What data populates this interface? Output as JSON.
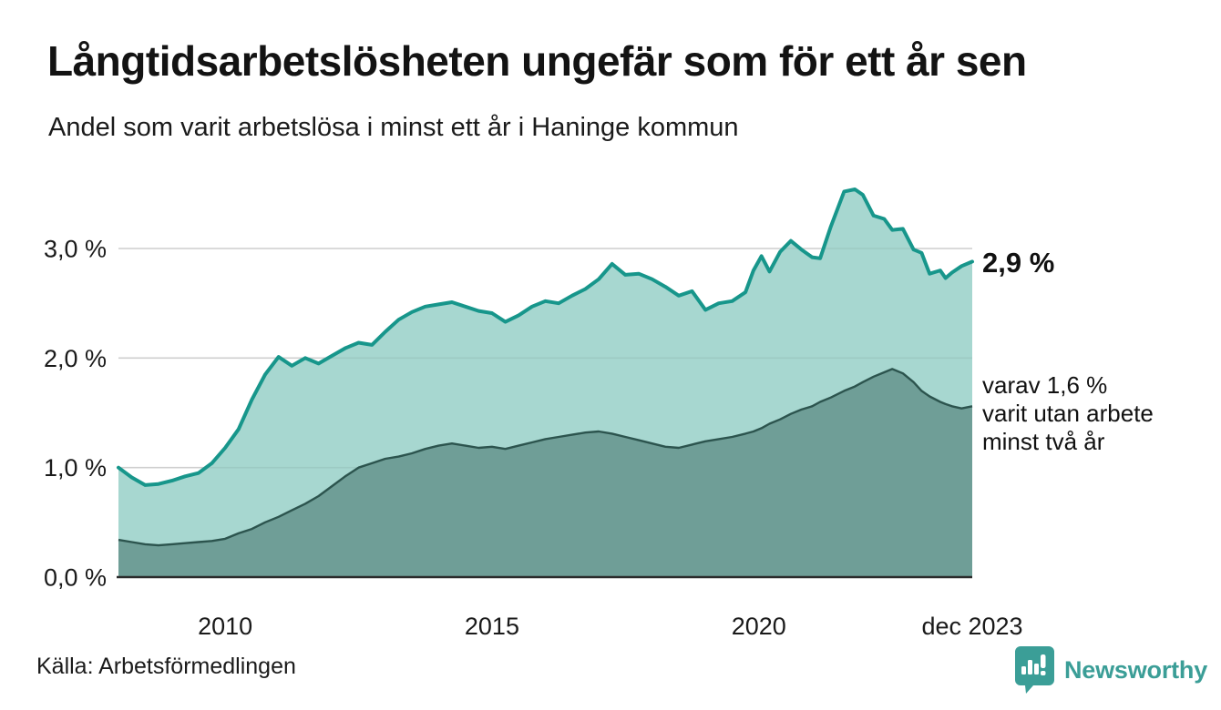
{
  "header": {
    "title": "Långtidsarbetslösheten ungefär som för ett år sen",
    "subtitle": "Andel som varit arbetslösa i minst ett år i Haninge kommun"
  },
  "annotations": {
    "end_value": "2,9 %",
    "sub_lines": [
      "varav 1,6 %",
      "varit utan arbete",
      "minst två år"
    ]
  },
  "footer": {
    "source": "Källa: Arbetsförmedlingen",
    "brand": "Newsworthy"
  },
  "colors": {
    "total_line": "#17968b",
    "total_fill": "#a7d7d0",
    "two_year_line": "#2c544e",
    "two_year_fill": "#6f9e97",
    "gridline": "#dcdcdc",
    "axis_line": "#2b2b2b",
    "text": "#1a1a1a",
    "brand_teal": "#3b9e97"
  },
  "chart_data": {
    "type": "area",
    "title": "Långtidsarbetslösheten ungefär som för ett år sen",
    "subtitle": "Andel som varit arbetslösa i minst ett år i Haninge kommun",
    "unit": "%",
    "grid": "horizontal",
    "legend_position": "right-edge-annotations",
    "ylim": [
      0,
      3.6
    ],
    "xlim": [
      2008,
      2024
    ],
    "x": [
      2008.0,
      2008.25,
      2008.5,
      2008.75,
      2009.0,
      2009.25,
      2009.5,
      2009.75,
      2010.0,
      2010.25,
      2010.5,
      2010.75,
      2011.0,
      2011.25,
      2011.5,
      2011.75,
      2012.0,
      2012.25,
      2012.5,
      2012.75,
      2013.0,
      2013.25,
      2013.5,
      2013.75,
      2014.0,
      2014.25,
      2014.5,
      2014.75,
      2015.0,
      2015.25,
      2015.5,
      2015.75,
      2016.0,
      2016.25,
      2016.5,
      2016.75,
      2017.0,
      2017.25,
      2017.5,
      2017.75,
      2018.0,
      2018.25,
      2018.5,
      2018.75,
      2019.0,
      2019.25,
      2019.5,
      2019.75,
      2019.9,
      2020.05,
      2020.2,
      2020.4,
      2020.6,
      2020.8,
      2021.0,
      2021.15,
      2021.35,
      2021.6,
      2021.8,
      2021.95,
      2022.15,
      2022.35,
      2022.5,
      2022.7,
      2022.9,
      2023.05,
      2023.2,
      2023.4,
      2023.5,
      2023.62,
      2023.8,
      2024.0
    ],
    "series": [
      {
        "name": "Andel som varit arbetslösa i minst ett år",
        "end_label": "2,9 %",
        "end_value_pct": 2.9,
        "values": [
          1.0,
          0.91,
          0.84,
          0.85,
          0.88,
          0.92,
          0.95,
          1.04,
          1.18,
          1.35,
          1.62,
          1.85,
          2.01,
          1.93,
          2.0,
          1.95,
          2.02,
          2.09,
          2.14,
          2.12,
          2.24,
          2.35,
          2.42,
          2.47,
          2.49,
          2.51,
          2.47,
          2.43,
          2.41,
          2.33,
          2.39,
          2.47,
          2.52,
          2.5,
          2.57,
          2.63,
          2.72,
          2.86,
          2.76,
          2.77,
          2.72,
          2.65,
          2.57,
          2.61,
          2.44,
          2.5,
          2.52,
          2.6,
          2.8,
          2.93,
          2.79,
          2.97,
          3.07,
          2.99,
          2.92,
          2.91,
          3.2,
          3.52,
          3.54,
          3.49,
          3.3,
          3.27,
          3.17,
          3.18,
          2.99,
          2.96,
          2.77,
          2.8,
          2.73,
          2.78,
          2.84,
          2.88
        ]
      },
      {
        "name": "varav utan arbete minst två år",
        "end_label": "varav 1,6 % varit utan arbete minst två år",
        "end_value_pct": 1.6,
        "values": [
          0.34,
          0.32,
          0.3,
          0.29,
          0.3,
          0.31,
          0.32,
          0.33,
          0.35,
          0.4,
          0.44,
          0.5,
          0.55,
          0.61,
          0.67,
          0.74,
          0.83,
          0.92,
          1.0,
          1.04,
          1.08,
          1.1,
          1.13,
          1.17,
          1.2,
          1.22,
          1.2,
          1.18,
          1.19,
          1.17,
          1.2,
          1.23,
          1.26,
          1.28,
          1.3,
          1.32,
          1.33,
          1.31,
          1.28,
          1.25,
          1.22,
          1.19,
          1.18,
          1.21,
          1.24,
          1.26,
          1.28,
          1.31,
          1.33,
          1.36,
          1.4,
          1.44,
          1.49,
          1.53,
          1.56,
          1.6,
          1.64,
          1.7,
          1.74,
          1.78,
          1.83,
          1.87,
          1.9,
          1.86,
          1.78,
          1.7,
          1.65,
          1.6,
          1.58,
          1.56,
          1.54,
          1.56
        ]
      }
    ],
    "yticks": [
      {
        "value": 0,
        "label": "0,0 %"
      },
      {
        "value": 1,
        "label": "1,0 %"
      },
      {
        "value": 2,
        "label": "2,0 %"
      },
      {
        "value": 3,
        "label": "3,0 %"
      }
    ],
    "xticks": [
      {
        "value": 2010,
        "label": "2010"
      },
      {
        "value": 2015,
        "label": "2015"
      },
      {
        "value": 2020,
        "label": "2020"
      },
      {
        "value": 2024,
        "label": "dec 2023"
      }
    ]
  }
}
